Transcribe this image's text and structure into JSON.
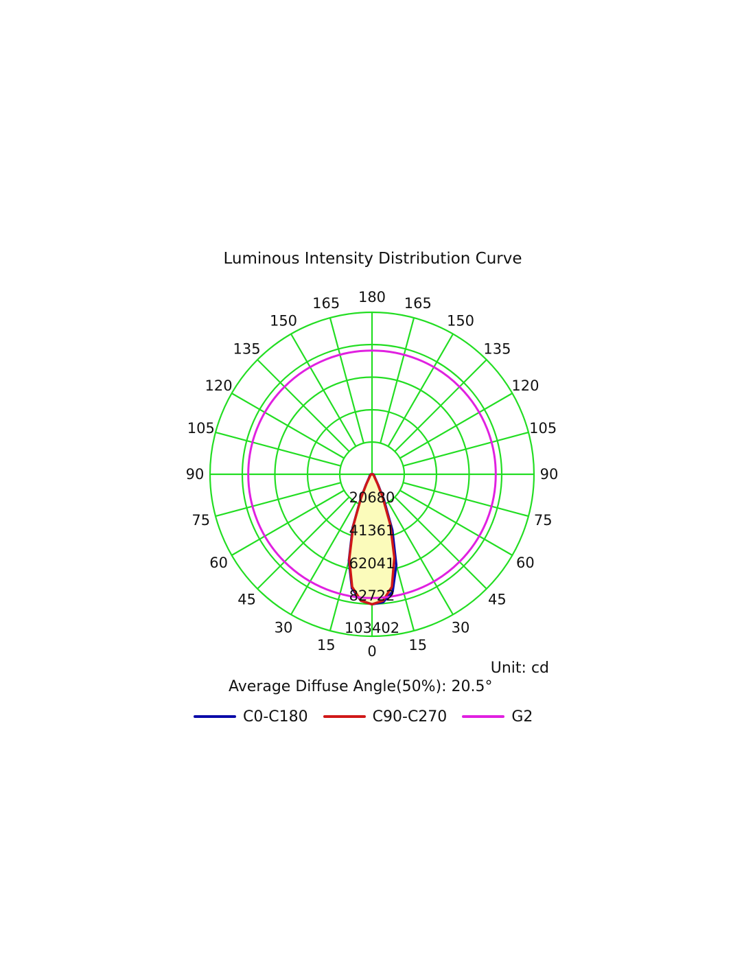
{
  "chart_data": {
    "type": "polar",
    "title": "Luminous Intensity Distribution Curve",
    "unit_label": "Unit: cd",
    "average_angle_label": "Average Diffuse Angle(50%): 20.5°",
    "angle_ticks": [
      "0",
      "15",
      "30",
      "45",
      "60",
      "75",
      "90",
      "105",
      "120",
      "135",
      "150",
      "165",
      "180"
    ],
    "ring_values": [
      "20680",
      "41361",
      "62041",
      "82722",
      "103402"
    ],
    "r_max": 103402,
    "grid": true,
    "grid_color": "#22dd22",
    "legend_position": "bottom",
    "series": [
      {
        "name": "C0-C180",
        "color": "#0a0aa8",
        "angles": [
          0,
          5,
          10,
          15,
          20,
          25,
          30,
          40,
          60,
          90
        ],
        "intensity_right": [
          83000,
          82000,
          76000,
          60000,
          38000,
          18000,
          8000,
          3000,
          1500,
          800
        ],
        "intensity_left": [
          83000,
          81000,
          74000,
          57000,
          36000,
          17000,
          7500,
          3000,
          1500,
          800
        ]
      },
      {
        "name": "C90-C270",
        "color": "#d01818",
        "angles": [
          0,
          5,
          10,
          15,
          20,
          25,
          30,
          40,
          60,
          90
        ],
        "intensity_right": [
          83000,
          81000,
          73000,
          55000,
          34000,
          16000,
          7000,
          2500,
          1200,
          500
        ],
        "intensity_left": [
          83000,
          81000,
          73000,
          56000,
          35000,
          16500,
          7000,
          2500,
          1200,
          500
        ]
      },
      {
        "name": "G2",
        "color": "#e020e0",
        "constant_intensity": 79000
      }
    ]
  }
}
